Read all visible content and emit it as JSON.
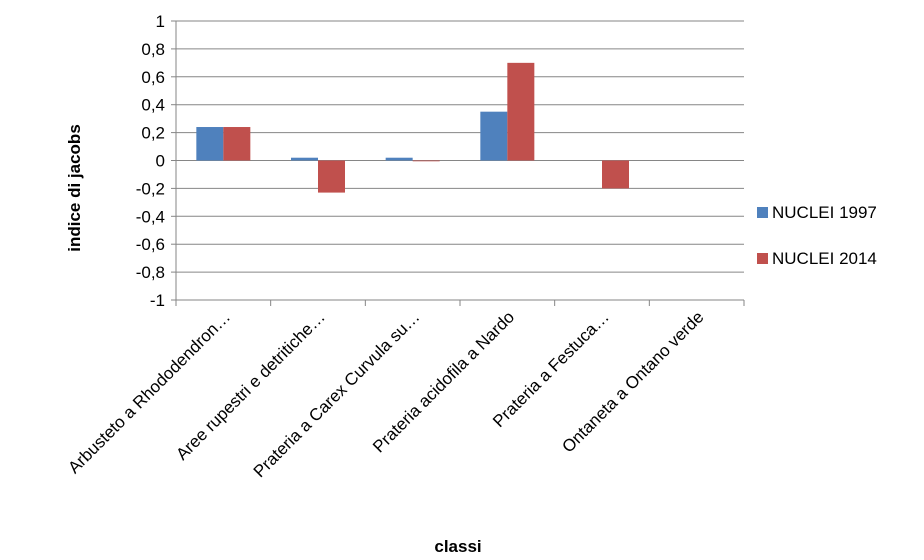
{
  "chart_data": {
    "type": "bar",
    "title": "",
    "xlabel": "classi",
    "ylabel": "indice di jacobs",
    "categories": [
      "Arbusteto a Rhododendron…",
      "Aree rupestri e detritiche…",
      "Prateria a Carex Curvula su…",
      "Prateria acidofila a Nardo",
      "Prateria a Festuca…",
      "Ontaneta a Ontano verde"
    ],
    "series": [
      {
        "name": "NUCLEI 1997",
        "color": "#4f81bd",
        "values": [
          0.24,
          0.02,
          0.02,
          0.35,
          null,
          null
        ]
      },
      {
        "name": "NUCLEI 2014",
        "color": "#c0504d",
        "values": [
          0.24,
          -0.23,
          0.0,
          0.7,
          -0.2,
          null
        ]
      }
    ],
    "ylim": [
      -1,
      1
    ],
    "yticks": [
      "1",
      "0,8",
      "0,6",
      "0,4",
      "0,2",
      "0",
      "-0,2",
      "-0,4",
      "-0,6",
      "-0,8",
      "-1"
    ],
    "grid": true,
    "legend_position": "right"
  }
}
